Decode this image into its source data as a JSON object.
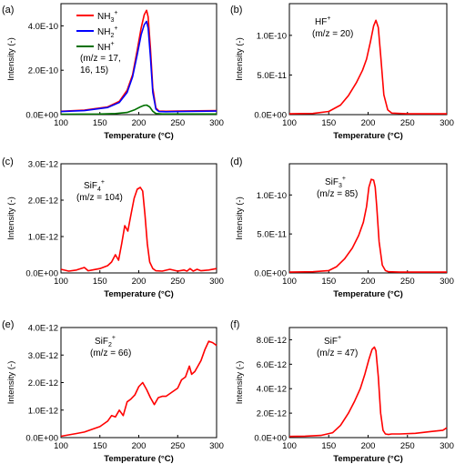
{
  "chart_data": [
    {
      "type": "line",
      "panel": "(a)",
      "xlabel": "Temperature (°C)",
      "ylabel": "Intensity (-)",
      "xlim": [
        100,
        300
      ],
      "ylim": [
        0,
        5e-10
      ],
      "xticks": [
        100,
        150,
        200,
        250,
        300
      ],
      "xtick_labels": [
        "100",
        "150",
        "200",
        "250",
        "300"
      ],
      "yticks": [
        0,
        2e-10,
        4e-10
      ],
      "ytick_labels": [
        "0.0E+00",
        "2.0E-10",
        "4.0E-10"
      ],
      "legend_position": "top-left",
      "annotations": [
        "(m/z = 17,",
        "16, 15)"
      ],
      "series": [
        {
          "name": "NH3+",
          "label_base": "NH",
          "label_sub": "3",
          "label_sup": "+",
          "color": "#ff0000",
          "x": [
            100,
            130,
            160,
            175,
            185,
            192,
            198,
            203,
            207,
            210,
            212,
            215,
            218,
            222,
            226,
            235,
            250,
            300
          ],
          "y": [
            1.5e-11,
            2e-11,
            3.5e-11,
            6e-11,
            1.1e-10,
            1.8e-10,
            2.9e-10,
            3.9e-10,
            4.5e-10,
            4.7e-10,
            4.4e-10,
            3e-10,
            1.2e-10,
            3e-11,
            1.6e-11,
            1.5e-11,
            1.6e-11,
            1.8e-11
          ]
        },
        {
          "name": "NH2+",
          "label_base": "NH",
          "label_sub": "2",
          "label_sup": "+",
          "color": "#0000ff",
          "x": [
            100,
            130,
            160,
            175,
            185,
            192,
            198,
            203,
            207,
            210,
            212,
            215,
            218,
            222,
            226,
            235,
            250,
            300
          ],
          "y": [
            1.4e-11,
            1.8e-11,
            3.2e-11,
            5.5e-11,
            1e-10,
            1.7e-10,
            2.7e-10,
            3.6e-10,
            4.05e-10,
            4.2e-10,
            3.9e-10,
            2.6e-10,
            1e-10,
            2.5e-11,
            1.4e-11,
            1.3e-11,
            1.4e-11,
            1.6e-11
          ]
        },
        {
          "name": "NH+",
          "label_base": "NH",
          "label_sub": "",
          "label_sup": "+",
          "color": "#007000",
          "x": [
            100,
            150,
            170,
            185,
            195,
            202,
            207,
            210,
            214,
            218,
            222,
            230,
            300
          ],
          "y": [
            2e-12,
            3e-12,
            5e-12,
            1e-11,
            2.2e-11,
            3.5e-11,
            4.2e-11,
            4.3e-11,
            3.5e-11,
            1.5e-11,
            5e-12,
            3e-12,
            3e-12
          ]
        }
      ]
    },
    {
      "type": "line",
      "panel": "(b)",
      "xlabel": "Temperature (°C)",
      "ylabel": "Intensity (-)",
      "xlim": [
        100,
        300
      ],
      "ylim": [
        0,
        1.4e-10
      ],
      "xticks": [
        100,
        150,
        200,
        250,
        300
      ],
      "xtick_labels": [
        "100",
        "150",
        "200",
        "250",
        "300"
      ],
      "yticks": [
        0,
        5e-11,
        1e-10
      ],
      "ytick_labels": [
        "0.0E+00",
        "5.0E-11",
        "1.0E-10"
      ],
      "annotations": [
        "(m/z = 20)"
      ],
      "series": [
        {
          "name": "HF+",
          "label_base": "HF",
          "label_sub": "",
          "label_sup": "+",
          "color": "#ff0000",
          "x": [
            100,
            130,
            150,
            165,
            175,
            185,
            193,
            198,
            203,
            207,
            210,
            213,
            216,
            220,
            225,
            230,
            250,
            300
          ],
          "y": [
            1e-12,
            1.5e-12,
            4e-12,
            1.2e-11,
            2.4e-11,
            4e-11,
            5.6e-11,
            7e-11,
            9.2e-11,
            1.12e-10,
            1.19e-10,
            1.1e-10,
            7.5e-11,
            2.5e-11,
            6e-12,
            2e-12,
            1e-12,
            1e-12
          ]
        }
      ]
    },
    {
      "type": "line",
      "panel": "(c)",
      "xlabel": "Temperature (°C)",
      "ylabel": "Intensity (-)",
      "xlim": [
        100,
        300
      ],
      "ylim": [
        0,
        3e-12
      ],
      "xticks": [
        100,
        150,
        200,
        250,
        300
      ],
      "xtick_labels": [
        "100",
        "150",
        "200",
        "250",
        "300"
      ],
      "yticks": [
        0,
        1e-12,
        2e-12,
        3e-12
      ],
      "ytick_labels": [
        "0.0E+00",
        "1.0E-12",
        "2.0E-12",
        "3.0E-12"
      ],
      "annotations": [
        "(m/z = 104)"
      ],
      "series": [
        {
          "name": "SiF4+",
          "label_base": "SiF",
          "label_sub": "4",
          "label_sup": "+",
          "color": "#ff0000",
          "x": [
            100,
            110,
            120,
            130,
            135,
            140,
            150,
            160,
            165,
            170,
            174,
            178,
            182,
            186,
            190,
            194,
            198,
            202,
            205,
            208,
            211,
            214,
            218,
            222,
            230,
            240,
            250,
            258,
            262,
            266,
            270,
            275,
            280,
            290,
            300
          ],
          "y": [
            1e-13,
            5e-14,
            8e-14,
            1.5e-13,
            6e-14,
            8e-14,
            1.2e-13,
            2e-13,
            3e-13,
            5e-13,
            3.5e-13,
            8e-13,
            1.3e-12,
            1.15e-12,
            1.6e-12,
            2.05e-12,
            2.3e-12,
            2.35e-12,
            2.25e-12,
            1.6e-12,
            8e-13,
            3e-13,
            1.2e-13,
            6e-14,
            5e-14,
            1e-13,
            5e-14,
            8e-14,
            5e-14,
            1.2e-13,
            5e-14,
            1e-13,
            6e-14,
            8e-14,
            1.2e-13
          ]
        }
      ]
    },
    {
      "type": "line",
      "panel": "(d)",
      "xlabel": "Temperature (°C)",
      "ylabel": "Intensity (-)",
      "xlim": [
        100,
        300
      ],
      "ylim": [
        0,
        1.4e-10
      ],
      "xticks": [
        100,
        150,
        200,
        250,
        300
      ],
      "xtick_labels": [
        "100",
        "150",
        "200",
        "250",
        "300"
      ],
      "yticks": [
        0,
        5e-11,
        1e-10
      ],
      "ytick_labels": [
        "0.0E+00",
        "5.0E-11",
        "1.0E-10"
      ],
      "annotations": [
        "(m/z = 85)"
      ],
      "series": [
        {
          "name": "SiF3+",
          "label_base": "SiF",
          "label_sub": "3",
          "label_sup": "+",
          "color": "#ff0000",
          "x": [
            100,
            130,
            150,
            160,
            170,
            180,
            188,
            194,
            198,
            201,
            204,
            207,
            209,
            211,
            214,
            218,
            222,
            226,
            240,
            300
          ],
          "y": [
            1e-12,
            1.5e-12,
            3e-12,
            8e-12,
            1.8e-11,
            3.2e-11,
            4.8e-11,
            6.5e-11,
            8.5e-11,
            1.1e-10,
            1.2e-10,
            1.19e-10,
            1.1e-10,
            8.5e-11,
            4e-11,
            1e-11,
            3e-12,
            1.5e-12,
            1e-12,
            1e-12
          ]
        }
      ]
    },
    {
      "type": "line",
      "panel": "(e)",
      "xlabel": "Temperature (°C)",
      "ylabel": "Intensity (-)",
      "xlim": [
        100,
        300
      ],
      "ylim": [
        0,
        4e-12
      ],
      "xticks": [
        100,
        150,
        200,
        250,
        300
      ],
      "xtick_labels": [
        "100",
        "150",
        "200",
        "250",
        "300"
      ],
      "yticks": [
        0,
        1e-12,
        2e-12,
        3e-12,
        4e-12
      ],
      "ytick_labels": [
        "0.0E+00",
        "1.0E-12",
        "2.0E-12",
        "3.0E-12",
        "4.0E-12"
      ],
      "annotations": [
        "(m/z = 66)"
      ],
      "series": [
        {
          "name": "SiF2+",
          "label_base": "SiF",
          "label_sub": "2",
          "label_sup": "+",
          "color": "#ff0000",
          "x": [
            100,
            110,
            120,
            130,
            140,
            150,
            160,
            165,
            170,
            175,
            180,
            185,
            190,
            195,
            200,
            205,
            210,
            215,
            220,
            225,
            230,
            235,
            240,
            245,
            250,
            255,
            260,
            265,
            268,
            272,
            276,
            280,
            285,
            290,
            295,
            300
          ],
          "y": [
            5e-14,
            1e-13,
            1.5e-13,
            2e-13,
            3e-13,
            4e-13,
            6e-13,
            8e-13,
            7.5e-13,
            1e-12,
            8e-13,
            1.3e-12,
            1.4e-12,
            1.55e-12,
            1.85e-12,
            2e-12,
            1.75e-12,
            1.45e-12,
            1.2e-12,
            1.45e-12,
            1.5e-12,
            1.5e-12,
            1.6e-12,
            1.7e-12,
            1.8e-12,
            2.1e-12,
            2.2e-12,
            2.6e-12,
            2.3e-12,
            2.4e-12,
            2.6e-12,
            2.8e-12,
            3.2e-12,
            3.5e-12,
            3.45e-12,
            3.35e-12
          ]
        }
      ]
    },
    {
      "type": "line",
      "panel": "(f)",
      "xlabel": "Temperature (°C)",
      "ylabel": "Intensity (-)",
      "xlim": [
        100,
        300
      ],
      "ylim": [
        0,
        9e-12
      ],
      "xticks": [
        100,
        150,
        200,
        250,
        300
      ],
      "xtick_labels": [
        "100",
        "150",
        "200",
        "250",
        "300"
      ],
      "yticks": [
        0,
        2e-12,
        4e-12,
        6e-12,
        8e-12
      ],
      "ytick_labels": [
        "0.0E+00",
        "2.0E-12",
        "4.0E-12",
        "6.0E-12",
        "8.0E-12"
      ],
      "annotations": [
        "(m/z = 47)"
      ],
      "series": [
        {
          "name": "SiF+",
          "label_base": "SiF",
          "label_sub": "",
          "label_sup": "+",
          "color": "#ff0000",
          "x": [
            100,
            120,
            140,
            155,
            165,
            175,
            183,
            190,
            196,
            201,
            205,
            208,
            210,
            213,
            216,
            219,
            222,
            226,
            230,
            240,
            260,
            280,
            295,
            300
          ],
          "y": [
            1e-13,
            1.2e-13,
            1.8e-13,
            4e-13,
            1e-12,
            2e-12,
            3e-12,
            4e-12,
            5.2e-12,
            6.4e-12,
            7.2e-12,
            7.4e-12,
            7.1e-12,
            5e-12,
            2e-12,
            6e-13,
            3e-13,
            2.5e-13,
            3e-13,
            3e-13,
            3.5e-13,
            5e-13,
            6e-13,
            8e-13
          ]
        }
      ]
    }
  ]
}
